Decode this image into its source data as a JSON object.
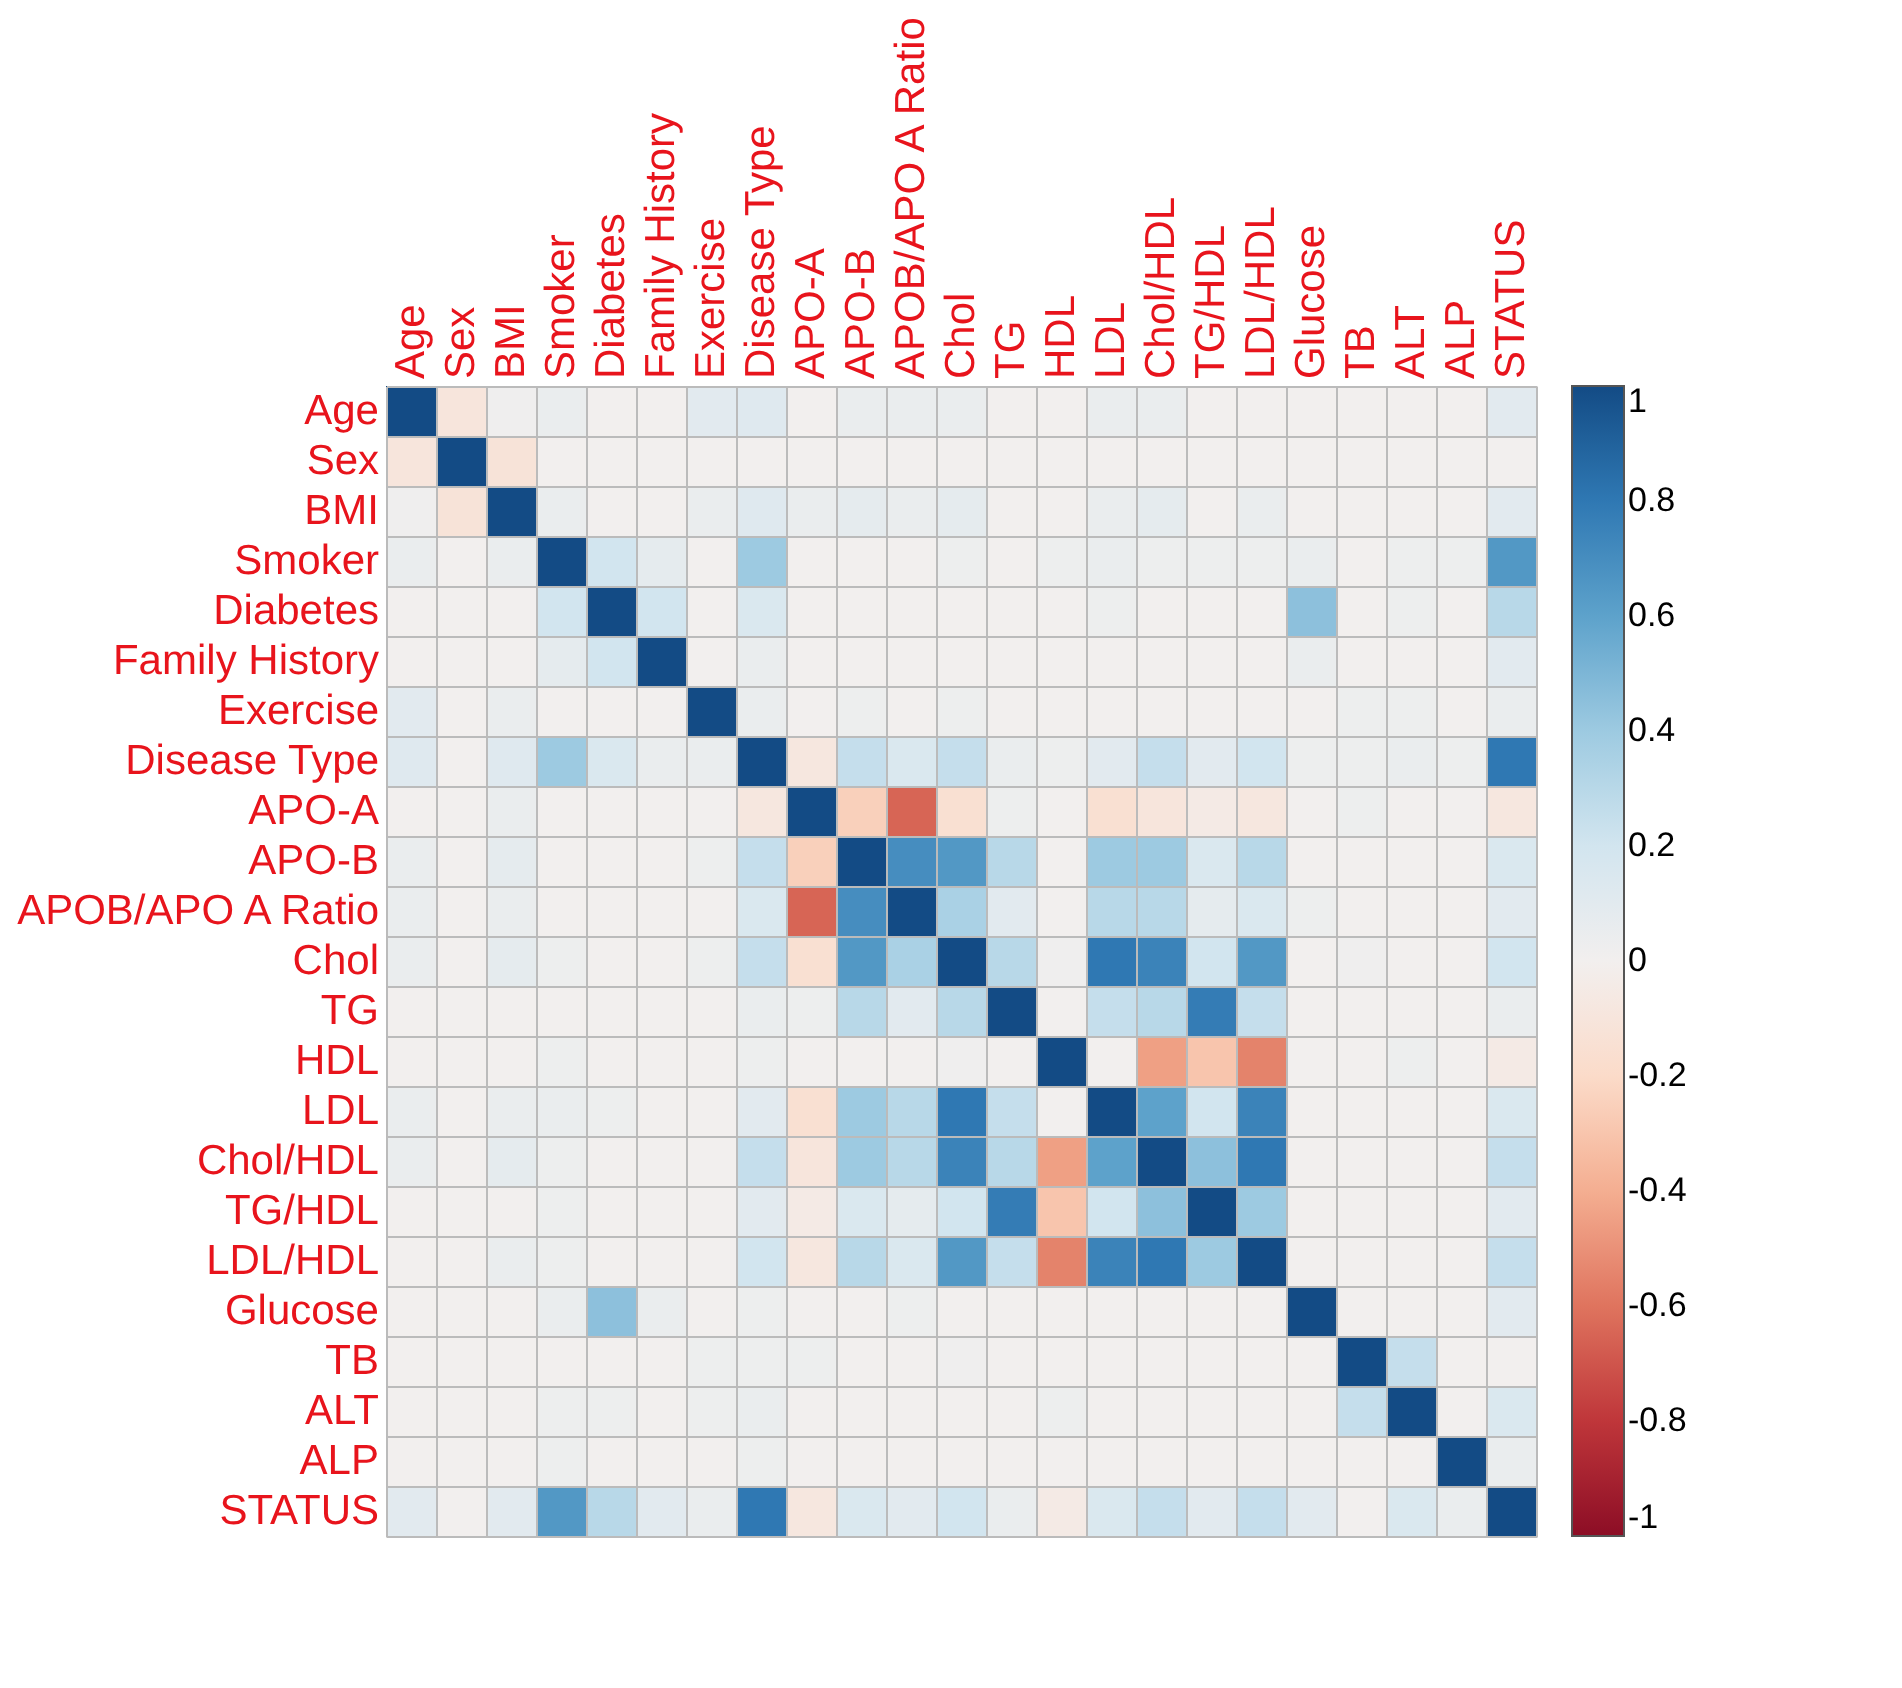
{
  "chart_data": {
    "type": "heatmap",
    "categories": [
      "Age",
      "Sex",
      "BMI",
      "Smoker",
      "Diabetes",
      "Family History",
      "Exercise",
      "Disease Type",
      "APO-A",
      "APO-B",
      "APOB/APO A Ratio",
      "Chol",
      "TG",
      "HDL",
      "LDL",
      "Chol/HDL",
      "TG/HDL",
      "LDL/HDL",
      "Glucose",
      "TB",
      "ALT",
      "ALP",
      "STATUS"
    ],
    "y_categories": [
      "Age",
      "Sex",
      "BMI",
      "Smoker",
      "Diabetes",
      "Family History",
      "Exercise",
      "Disease Type",
      "APO-A",
      "APO-B",
      "APOB/APO A Ratio",
      "Chol",
      "TG",
      "HDL",
      "LDL",
      "Chol/HDL",
      "TG/HDL",
      "LDL/HDL",
      "Glucose",
      "TB",
      "ALT",
      "ALP",
      "STATUS"
    ],
    "cells": [
      [
        1,
        -0.1,
        0.02,
        0.05,
        0,
        0,
        0.1,
        0.12,
        0,
        0.05,
        0.05,
        0.05,
        0,
        0,
        0.05,
        0.05,
        0,
        0,
        0,
        0,
        0,
        0,
        0.1
      ],
      [
        -0.1,
        1,
        -0.12,
        0,
        0,
        0,
        0,
        0,
        0,
        0,
        0,
        0,
        0,
        0,
        0,
        0,
        0,
        0,
        0,
        0,
        0,
        0,
        0
      ],
      [
        0.02,
        -0.12,
        1,
        0.05,
        0,
        0,
        0.05,
        0.12,
        0.05,
        0.08,
        0.05,
        0.08,
        0,
        0,
        0.05,
        0.08,
        0,
        0.05,
        0,
        0,
        0,
        0,
        0.1
      ],
      [
        0.05,
        0,
        0.05,
        1,
        0.2,
        0.08,
        0,
        0.4,
        0,
        0,
        0,
        0.03,
        0,
        0.03,
        0.05,
        0.03,
        0.03,
        0.03,
        0.05,
        0,
        0.03,
        0.03,
        0.65
      ],
      [
        0,
        0,
        0,
        0.2,
        1,
        0.2,
        0,
        0.15,
        0,
        0,
        0,
        0,
        0,
        0,
        0.03,
        0,
        0,
        0,
        0.45,
        0,
        0.03,
        0,
        0.3
      ],
      [
        0,
        0,
        0,
        0.08,
        0.2,
        1,
        0,
        0.05,
        0,
        0,
        0,
        0,
        0,
        0,
        0,
        0,
        0,
        0,
        0.05,
        0,
        0,
        0,
        0.1
      ],
      [
        0.1,
        0,
        0.05,
        0,
        0,
        0,
        1,
        0.05,
        0,
        0.03,
        0,
        0.03,
        0,
        0,
        0,
        0,
        0,
        0,
        0,
        0.03,
        0.03,
        0,
        0.05
      ],
      [
        0.12,
        0,
        0.12,
        0.4,
        0.15,
        0.05,
        0.05,
        1,
        -0.08,
        0.25,
        0.15,
        0.25,
        0.05,
        0.03,
        0.1,
        0.25,
        0.1,
        0.2,
        0.03,
        0.03,
        0.05,
        0.03,
        0.8
      ],
      [
        0,
        0,
        0.05,
        0,
        0,
        0,
        0,
        -0.08,
        1,
        -0.25,
        -0.65,
        -0.15,
        0.03,
        0,
        -0.15,
        -0.1,
        -0.05,
        -0.08,
        0,
        0.03,
        0,
        0,
        -0.08
      ],
      [
        0.05,
        0,
        0.08,
        0,
        0,
        0,
        0.03,
        0.25,
        -0.25,
        1,
        0.7,
        0.65,
        0.3,
        0,
        0.4,
        0.4,
        0.15,
        0.3,
        0,
        0,
        0,
        0,
        0.15
      ],
      [
        0.05,
        0,
        0.05,
        0,
        0,
        0,
        0,
        0.15,
        -0.65,
        0.7,
        1,
        0.35,
        0.1,
        0,
        0.3,
        0.3,
        0.08,
        0.15,
        0.03,
        0,
        0,
        0,
        0.1
      ],
      [
        0.05,
        0,
        0.08,
        0.03,
        0,
        0,
        0.03,
        0.25,
        -0.15,
        0.65,
        0.35,
        1,
        0.3,
        0.02,
        0.8,
        0.75,
        0.2,
        0.65,
        0,
        0.02,
        0,
        0,
        0.2
      ],
      [
        0,
        0,
        0,
        0,
        0,
        0,
        0,
        0.05,
        0.03,
        0.3,
        0.1,
        0.3,
        1,
        0,
        0.25,
        0.3,
        0.78,
        0.25,
        0,
        0,
        0,
        0,
        0.05
      ],
      [
        0,
        0,
        0,
        0.03,
        0,
        0,
        0,
        0.03,
        0,
        0,
        0,
        0.02,
        0,
        1,
        0,
        -0.45,
        -0.3,
        -0.55,
        0,
        0,
        0.03,
        0,
        -0.05
      ],
      [
        0.05,
        0,
        0.05,
        0.05,
        0.03,
        0,
        0,
        0.1,
        -0.15,
        0.4,
        0.3,
        0.8,
        0.25,
        0,
        1,
        0.6,
        0.2,
        0.75,
        0,
        0,
        0,
        0,
        0.15
      ],
      [
        0.05,
        0,
        0.08,
        0.03,
        0,
        0,
        0,
        0.25,
        -0.1,
        0.4,
        0.3,
        0.75,
        0.3,
        -0.45,
        0.6,
        1,
        0.45,
        0.8,
        0,
        0,
        0,
        0,
        0.25
      ],
      [
        0,
        0,
        0,
        0.03,
        0,
        0,
        0,
        0.1,
        -0.05,
        0.15,
        0.08,
        0.2,
        0.78,
        -0.3,
        0.2,
        0.45,
        1,
        0.4,
        0,
        0,
        0,
        0,
        0.1
      ],
      [
        0,
        0,
        0.05,
        0.03,
        0,
        0,
        0,
        0.2,
        -0.08,
        0.3,
        0.15,
        0.65,
        0.25,
        -0.55,
        0.75,
        0.8,
        0.4,
        1,
        0,
        0,
        0,
        0,
        0.25
      ],
      [
        0,
        0,
        0,
        0.05,
        0.45,
        0.05,
        0,
        0.03,
        0,
        0,
        0.03,
        0,
        0,
        0,
        0,
        0,
        0,
        0,
        1,
        0,
        0,
        0,
        0.1
      ],
      [
        0,
        0,
        0,
        0,
        0,
        0,
        0.03,
        0.03,
        0.03,
        0,
        0,
        0.02,
        0,
        0,
        0,
        0,
        0,
        0,
        0,
        1,
        0.25,
        0,
        0
      ],
      [
        0,
        0,
        0,
        0.03,
        0.03,
        0,
        0.03,
        0.05,
        0,
        0,
        0,
        0,
        0,
        0.03,
        0,
        0,
        0,
        0,
        0,
        0.25,
        1,
        0,
        0.15
      ],
      [
        0,
        0,
        0,
        0.03,
        0,
        0,
        0,
        0.03,
        0,
        0,
        0,
        0,
        0,
        0,
        0,
        0,
        0,
        0,
        0,
        0,
        0,
        1,
        0.05
      ],
      [
        0.1,
        0,
        0.1,
        0.65,
        0.3,
        0.1,
        0.05,
        0.8,
        -0.08,
        0.15,
        0.1,
        0.2,
        0.05,
        -0.05,
        0.15,
        0.25,
        0.1,
        0.25,
        0.1,
        0,
        0.15,
        0.05,
        1
      ]
    ],
    "clim": [
      -1,
      1
    ],
    "cticks": [
      -1,
      -0.8,
      -0.6,
      -0.4,
      -0.2,
      0,
      0.2,
      0.4,
      0.6,
      0.8,
      1
    ],
    "grid": true
  }
}
